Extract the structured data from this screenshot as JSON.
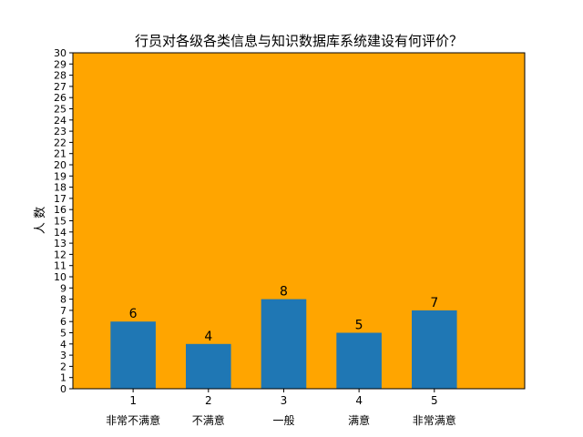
{
  "chart_data": {
    "type": "bar",
    "title": "行员对各级各类信息与知识数据库系统建设有何评价？",
    "xlabel": "",
    "ylabel": "人 数",
    "x": [
      1,
      2,
      3,
      4,
      5
    ],
    "x_tick_labels": [
      "1",
      "2",
      "3",
      "4",
      "5"
    ],
    "categories": [
      "非常不满意",
      "不满意",
      "一般",
      "满意",
      "非常满意"
    ],
    "values": [
      6,
      4,
      8,
      5,
      7
    ],
    "data_labels": [
      "6",
      "4",
      "8",
      "5",
      "7"
    ],
    "xlim": [
      0.2,
      6.2
    ],
    "ylim": [
      0,
      30
    ],
    "y_ticks": [
      0,
      1,
      2,
      3,
      4,
      5,
      6,
      7,
      8,
      9,
      10,
      11,
      12,
      13,
      14,
      15,
      16,
      17,
      18,
      19,
      20,
      21,
      22,
      23,
      24,
      25,
      26,
      27,
      28,
      29,
      30
    ],
    "grid": false,
    "legend": "none",
    "colors": {
      "bar": "#1f77b4",
      "plot_background": "#ffa500",
      "figure_background": "#ffffff",
      "axis": "#000000"
    }
  }
}
